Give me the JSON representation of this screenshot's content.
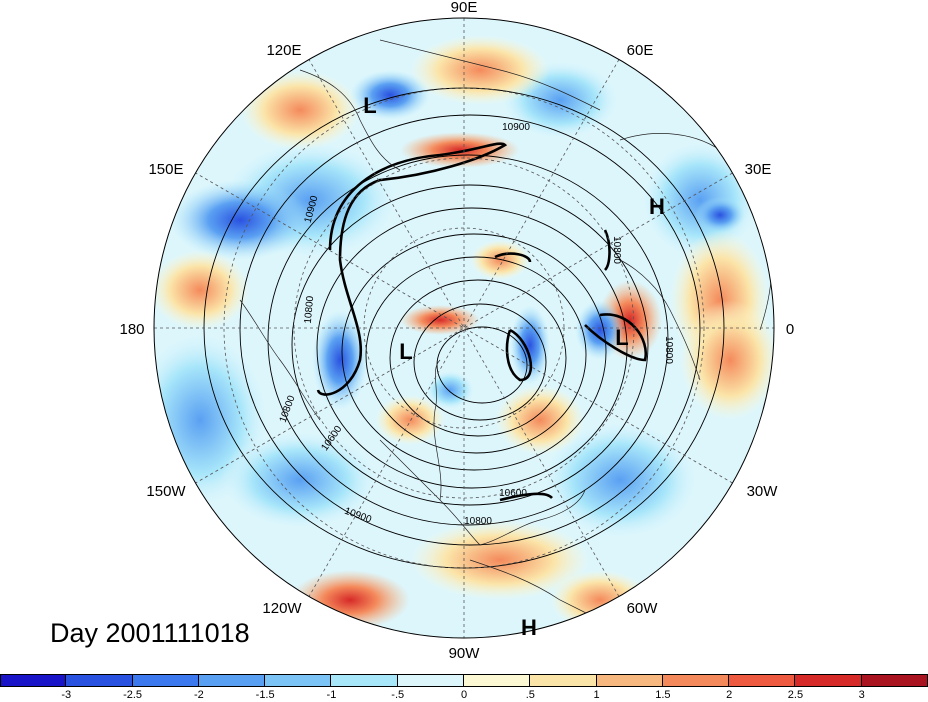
{
  "title_label": "Day 2001111018",
  "longitude_labels": {
    "n": "90E",
    "ne60": "60E",
    "ne30": "30E",
    "e": "0",
    "se30": "30W",
    "se60": "60W",
    "s": "90W",
    "sw120": "120W",
    "sw150": "150W",
    "w": "180",
    "nw150": "150E",
    "nw120": "120E"
  },
  "pressure_systems": [
    {
      "name": "low-east-siberia",
      "text": "L"
    },
    {
      "name": "high-eurasia",
      "text": "H"
    },
    {
      "name": "low-europe",
      "text": "L"
    },
    {
      "name": "low-pacific",
      "text": "L"
    },
    {
      "name": "high-central-america",
      "text": "H"
    }
  ],
  "contour_labels": [
    "10900",
    "10900",
    "10800",
    "10800",
    "10600",
    "10900",
    "10800",
    "10600",
    "10800",
    "10800"
  ],
  "colorbar": {
    "colors": [
      "#1a14c8",
      "#2a52e0",
      "#3c78ee",
      "#5aa0f2",
      "#7cc4f6",
      "#a8e6fa",
      "#ddf6fc",
      "#fdf8d4",
      "#fbe4a8",
      "#f7b880",
      "#f48a5c",
      "#ee5a40",
      "#d62a28",
      "#aa1420"
    ],
    "tick_labels": [
      "-3",
      "-2.5",
      "-2",
      "-1.5",
      "-1",
      "-.5",
      "0",
      ".5",
      "1",
      "1.5",
      "2",
      "2.5",
      "3"
    ]
  }
}
